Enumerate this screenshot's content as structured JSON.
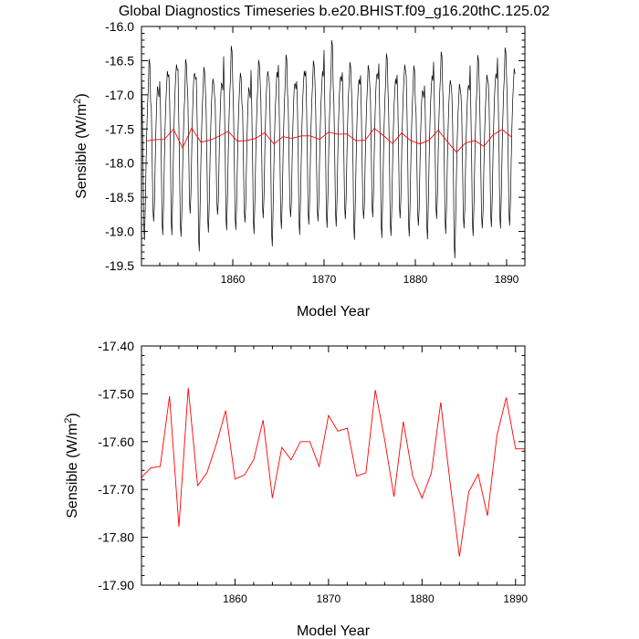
{
  "figure": {
    "title": "Global Diagnostics Timeseries b.e20.BHIST.f09_g16.20thC.125.02"
  },
  "colors": {
    "monthly_line": "#000000",
    "annual_line": "#ff0000",
    "frame": "#000000"
  },
  "chart_data": [
    {
      "type": "line",
      "title": "Global Diagnostics Timeseries b.e20.BHIST.f09_g16.20thC.125.02",
      "xlabel": "Model Year",
      "ylabel_main": "Sensible (W/m",
      "ylabel_sup": "2",
      "ylabel_close": ")",
      "xlim": [
        1850.0,
        1892.0
      ],
      "ylim": [
        -19.5,
        -16.0
      ],
      "x_ticks": [
        1860,
        1870,
        1880,
        1890
      ],
      "x_tick_labels": [
        "1860",
        "1870",
        "1880",
        "1890"
      ],
      "y_ticks": [
        -19.5,
        -19.0,
        -18.5,
        -18.0,
        -17.5,
        -17.0,
        -16.5,
        -16.0
      ],
      "y_tick_labels": [
        "-19.5",
        "-19.0",
        "-18.5",
        "-18.0",
        "-17.5",
        "-17.0",
        "-16.5",
        "-16.0"
      ],
      "series": [
        {
          "name": "monthly",
          "color": "#000000",
          "x_start": 1850.0,
          "x_step": 0.0833333,
          "profile_note": "annual cycle profile by month (W/m2), added to annual mean",
          "seasonal_profile": [
            0.75,
            0.45,
            -0.3,
            -1.15,
            -1.35,
            -0.95,
            -0.35,
            0.15,
            0.55,
            0.78,
            0.9,
            0.82
          ],
          "peak_adjust": [
            0.3,
            -0.2,
            0.1,
            0.05,
            0.4,
            -0.1,
            0.2,
            0.0,
            -0.15,
            0.35,
            0.1,
            -0.2,
            0.25,
            0.0,
            0.15,
            0.3,
            -0.1,
            0.05,
            0.2,
            0.1,
            0.45,
            -0.05,
            0.15,
            0.0,
            0.2,
            -0.1,
            0.3,
            0.05,
            0.1,
            0.2,
            -0.15,
            0.05,
            0.25,
            0.0,
            0.1,
            -0.05,
            0.35,
            0.15,
            0.0,
            0.3,
            0.1,
            0.05
          ],
          "trough_adjust": [
            -0.1,
            0.15,
            -0.05,
            -0.2,
            0.05,
            0.1,
            -0.25,
            0.0,
            0.2,
            -0.1,
            0.05,
            0.15,
            -0.05,
            0.1,
            -0.15,
            0.0,
            0.2,
            -0.1,
            0.05,
            0.15,
            -0.05,
            0.0,
            0.1,
            -0.1,
            0.2,
            0.05,
            -0.15,
            0.0,
            0.1,
            -0.05,
            0.15,
            -0.1,
            0.05,
            0.0,
            -0.2,
            0.1,
            -0.05,
            0.15,
            0.0,
            -0.1,
            0.05,
            0.0
          ]
        },
        {
          "name": "annual",
          "color": "#ff0000",
          "x": [
            1850.5,
            1851.5,
            1852.5,
            1853.5,
            1854.5,
            1855.5,
            1856.5,
            1857.5,
            1858.5,
            1859.5,
            1860.5,
            1861.5,
            1862.5,
            1863.5,
            1864.5,
            1865.5,
            1866.5,
            1867.5,
            1868.5,
            1869.5,
            1870.5,
            1871.5,
            1872.5,
            1873.5,
            1874.5,
            1875.5,
            1876.5,
            1877.5,
            1878.5,
            1879.5,
            1880.5,
            1881.5,
            1882.5,
            1883.5,
            1884.5,
            1885.5,
            1886.5,
            1887.5,
            1888.5,
            1889.5,
            1890.5
          ],
          "values": [
            -17.675,
            -17.655,
            -17.652,
            -17.505,
            -17.778,
            -17.488,
            -17.692,
            -17.665,
            -17.605,
            -17.535,
            -17.678,
            -17.67,
            -17.638,
            -17.555,
            -17.718,
            -17.612,
            -17.638,
            -17.6,
            -17.6,
            -17.652,
            -17.545,
            -17.578,
            -17.572,
            -17.672,
            -17.665,
            -17.492,
            -17.595,
            -17.715,
            -17.558,
            -17.672,
            -17.718,
            -17.665,
            -17.518,
            -17.685,
            -17.84,
            -17.705,
            -17.668,
            -17.755,
            -17.588,
            -17.508,
            -17.615
          ]
        }
      ]
    },
    {
      "type": "line",
      "title": "",
      "xlabel": "Model Year",
      "ylabel_main": "Sensible (W/m",
      "ylabel_sup": "2",
      "ylabel_close": ")",
      "xlim": [
        1850.0,
        1891.0
      ],
      "ylim": [
        -17.9,
        -17.4
      ],
      "x_ticks": [
        1860,
        1870,
        1880,
        1890
      ],
      "x_tick_labels": [
        "1860",
        "1870",
        "1880",
        "1890"
      ],
      "y_ticks": [
        -17.9,
        -17.8,
        -17.7,
        -17.6,
        -17.5,
        -17.4
      ],
      "y_tick_labels": [
        "-17.90",
        "-17.80",
        "-17.70",
        "-17.60",
        "-17.50",
        "-17.40"
      ],
      "series": [
        {
          "name": "annual",
          "color": "#ff0000",
          "x": [
            1850.0,
            1851.0,
            1852.0,
            1853.0,
            1854.0,
            1855.0,
            1856.0,
            1857.0,
            1858.0,
            1859.0,
            1860.0,
            1861.0,
            1862.0,
            1863.0,
            1864.0,
            1865.0,
            1866.0,
            1867.0,
            1868.0,
            1869.0,
            1870.0,
            1871.0,
            1872.0,
            1873.0,
            1874.0,
            1875.0,
            1876.0,
            1877.0,
            1878.0,
            1879.0,
            1880.0,
            1881.0,
            1882.0,
            1883.0,
            1884.0,
            1885.0,
            1886.0,
            1887.0,
            1888.0,
            1889.0,
            1890.0,
            1891.0
          ],
          "values": [
            -17.675,
            -17.655,
            -17.652,
            -17.505,
            -17.778,
            -17.488,
            -17.692,
            -17.665,
            -17.605,
            -17.535,
            -17.678,
            -17.67,
            -17.638,
            -17.555,
            -17.718,
            -17.612,
            -17.638,
            -17.6,
            -17.6,
            -17.652,
            -17.545,
            -17.578,
            -17.572,
            -17.672,
            -17.665,
            -17.492,
            -17.595,
            -17.715,
            -17.558,
            -17.672,
            -17.718,
            -17.665,
            -17.518,
            -17.685,
            -17.84,
            -17.705,
            -17.668,
            -17.755,
            -17.588,
            -17.508,
            -17.615,
            -17.615
          ]
        }
      ]
    }
  ]
}
